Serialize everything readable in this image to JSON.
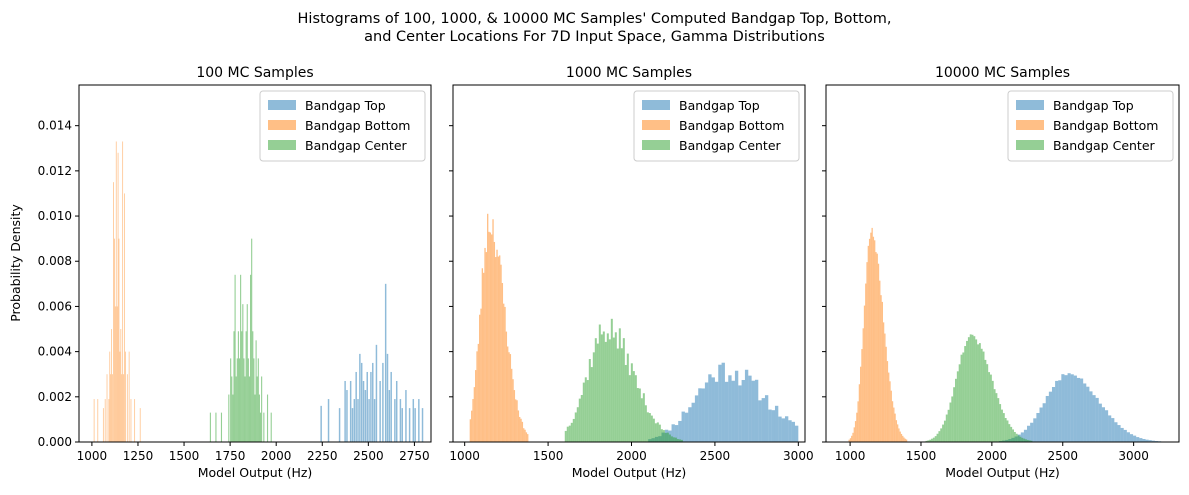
{
  "figure": {
    "title_line1": "Histograms of 100, 1000, & 10000 MC Samples' Computed Bandgap Top, Bottom,",
    "title_line2": "and Center Locations For 7D Input Space, Gamma Distributions",
    "ylabel": "Probability Density"
  },
  "colors": {
    "top": "#1f77b4",
    "bottom": "#ff7f0e",
    "center": "#2ca02c",
    "opacity": 0.5
  },
  "chart_data": [
    {
      "type": "bar",
      "title": "100 MC Samples",
      "xlabel": "Model Output (Hz)",
      "ylabel": "Probability Density",
      "xlim": [
        930,
        2840
      ],
      "ylim": [
        0,
        0.0158
      ],
      "xticks": [
        1000,
        1250,
        1500,
        1750,
        2000,
        2250,
        2500,
        2750
      ],
      "yticks": [
        0.0,
        0.002,
        0.004,
        0.006,
        0.008,
        0.01,
        0.012,
        0.014
      ],
      "ytick_labels": [
        "0.000",
        "0.002",
        "0.004",
        "0.006",
        "0.008",
        "0.010",
        "0.012",
        "0.014"
      ],
      "legend": {
        "position": "top-right",
        "entries": [
          "Bandgap Top",
          "Bandgap Bottom",
          "Bandgap Center"
        ]
      },
      "series": [
        {
          "name": "Bandgap Top",
          "key": "top",
          "bins": [
            [
              2240,
              2248,
              0.0016
            ],
            [
              2280,
              2288,
              0.0019
            ],
            [
              2340,
              2348,
              0.0015
            ],
            [
              2370,
              2378,
              0.0027
            ],
            [
              2380,
              2388,
              0.0023
            ],
            [
              2400,
              2408,
              0.0027
            ],
            [
              2410,
              2418,
              0.0015
            ],
            [
              2420,
              2428,
              0.0019
            ],
            [
              2430,
              2438,
              0.0031
            ],
            [
              2440,
              2448,
              0.0019
            ],
            [
              2450,
              2458,
              0.0039
            ],
            [
              2460,
              2468,
              0.0035
            ],
            [
              2470,
              2478,
              0.0027
            ],
            [
              2480,
              2488,
              0.0023
            ],
            [
              2490,
              2498,
              0.0031
            ],
            [
              2500,
              2508,
              0.0019
            ],
            [
              2510,
              2518,
              0.0031
            ],
            [
              2520,
              2528,
              0.0035
            ],
            [
              2530,
              2538,
              0.0019
            ],
            [
              2540,
              2548,
              0.0043
            ],
            [
              2560,
              2568,
              0.0027
            ],
            [
              2575,
              2583,
              0.0035
            ],
            [
              2590,
              2598,
              0.007
            ],
            [
              2600,
              2608,
              0.0039
            ],
            [
              2610,
              2618,
              0.0023
            ],
            [
              2620,
              2628,
              0.0031
            ],
            [
              2640,
              2648,
              0.0019
            ],
            [
              2650,
              2658,
              0.0027
            ],
            [
              2670,
              2678,
              0.0019
            ],
            [
              2680,
              2688,
              0.0015
            ],
            [
              2700,
              2708,
              0.0023
            ],
            [
              2720,
              2728,
              0.0015
            ],
            [
              2740,
              2748,
              0.0019
            ],
            [
              2750,
              2758,
              0.0015
            ],
            [
              2770,
              2778,
              0.0019
            ],
            [
              2790,
              2798,
              0.0015
            ]
          ]
        },
        {
          "name": "Bandgap Bottom",
          "key": "bottom",
          "bins": [
            [
              1010,
              1014,
              0.0019
            ],
            [
              1030,
              1034,
              0.0019
            ],
            [
              1060,
              1064,
              0.0015
            ],
            [
              1070,
              1074,
              0.0019
            ],
            [
              1080,
              1084,
              0.003
            ],
            [
              1090,
              1094,
              0.0019
            ],
            [
              1095,
              1099,
              0.004
            ],
            [
              1100,
              1104,
              0.003
            ],
            [
              1105,
              1109,
              0.005
            ],
            [
              1110,
              1114,
              0.003
            ],
            [
              1115,
              1119,
              0.0115
            ],
            [
              1120,
              1124,
              0.009
            ],
            [
              1125,
              1129,
              0.006
            ],
            [
              1130,
              1134,
              0.0133
            ],
            [
              1135,
              1139,
              0.006
            ],
            [
              1140,
              1144,
              0.0128
            ],
            [
              1145,
              1149,
              0.009
            ],
            [
              1150,
              1154,
              0.004
            ],
            [
              1155,
              1159,
              0.005
            ],
            [
              1160,
              1164,
              0.003
            ],
            [
              1165,
              1169,
              0.0133
            ],
            [
              1170,
              1174,
              0.003
            ],
            [
              1175,
              1179,
              0.011
            ],
            [
              1180,
              1184,
              0.004
            ],
            [
              1190,
              1194,
              0.003
            ],
            [
              1200,
              1204,
              0.004
            ],
            [
              1210,
              1214,
              0.0019
            ],
            [
              1230,
              1234,
              0.0019
            ],
            [
              1260,
              1264,
              0.0015
            ]
          ]
        },
        {
          "name": "Bandgap Center",
          "key": "center",
          "bins": [
            [
              1640,
              1646,
              0.0013
            ],
            [
              1670,
              1676,
              0.0013
            ],
            [
              1700,
              1706,
              0.0013
            ],
            [
              1740,
              1746,
              0.0021
            ],
            [
              1750,
              1756,
              0.0037
            ],
            [
              1756,
              1762,
              0.0029
            ],
            [
              1762,
              1768,
              0.0021
            ],
            [
              1768,
              1774,
              0.0049
            ],
            [
              1774,
              1780,
              0.0074
            ],
            [
              1780,
              1786,
              0.0029
            ],
            [
              1786,
              1792,
              0.0037
            ],
            [
              1792,
              1798,
              0.0049
            ],
            [
              1798,
              1804,
              0.0037
            ],
            [
              1804,
              1810,
              0.0074
            ],
            [
              1810,
              1816,
              0.0049
            ],
            [
              1816,
              1822,
              0.0061
            ],
            [
              1822,
              1828,
              0.0037
            ],
            [
              1828,
              1834,
              0.0029
            ],
            [
              1834,
              1840,
              0.0049
            ],
            [
              1840,
              1846,
              0.0061
            ],
            [
              1846,
              1852,
              0.0037
            ],
            [
              1852,
              1858,
              0.0029
            ],
            [
              1858,
              1864,
              0.0074
            ],
            [
              1864,
              1870,
              0.009
            ],
            [
              1870,
              1876,
              0.0049
            ],
            [
              1876,
              1882,
              0.0037
            ],
            [
              1882,
              1888,
              0.0021
            ],
            [
              1888,
              1894,
              0.0045
            ],
            [
              1894,
              1900,
              0.0029
            ],
            [
              1900,
              1906,
              0.0037
            ],
            [
              1906,
              1912,
              0.0021
            ],
            [
              1912,
              1918,
              0.0013
            ],
            [
              1918,
              1924,
              0.0029
            ],
            [
              1930,
              1936,
              0.0013
            ],
            [
              1950,
              1956,
              0.0021
            ],
            [
              1970,
              1976,
              0.0013
            ]
          ]
        }
      ]
    },
    {
      "type": "bar",
      "title": "1000 MC Samples",
      "xlabel": "Model Output (Hz)",
      "ylabel": "",
      "xlim": [
        930,
        3040
      ],
      "ylim": [
        0,
        0.0158
      ],
      "xticks": [
        1000,
        1500,
        2000,
        2500,
        3000
      ],
      "yticks": [
        0.0,
        0.002,
        0.004,
        0.006,
        0.008,
        0.01,
        0.012,
        0.014
      ],
      "legend": {
        "position": "top-right",
        "entries": [
          "Bandgap Top",
          "Bandgap Bottom",
          "Bandgap Center"
        ]
      },
      "series": [
        {
          "name": "Bandgap Top",
          "key": "top",
          "profile": {
            "mu": 2560,
            "sigma": 180,
            "peak": 0.0032,
            "min": 2100,
            "max": 3000,
            "width": 20,
            "noise": 0.18,
            "skew": 0.35,
            "seed": 11
          }
        },
        {
          "name": "Bandgap Bottom",
          "key": "bottom",
          "profile": {
            "mu": 1150,
            "sigma": 55,
            "peak": 0.0098,
            "min": 1030,
            "max": 1380,
            "width": 8,
            "noise": 0.1,
            "skew": 0.6,
            "seed": 23
          }
        },
        {
          "name": "Bandgap Center",
          "key": "center",
          "profile": {
            "mu": 1850,
            "sigma": 115,
            "peak": 0.005,
            "min": 1600,
            "max": 2300,
            "width": 12,
            "noise": 0.14,
            "skew": 0.4,
            "seed": 37
          }
        }
      ]
    },
    {
      "type": "bar",
      "title": "10000 MC Samples",
      "xlabel": "Model Output (Hz)",
      "ylabel": "",
      "xlim": [
        830,
        3320
      ],
      "ylim": [
        0,
        0.0158
      ],
      "xticks": [
        1000,
        1500,
        2000,
        2500,
        3000
      ],
      "yticks": [
        0.0,
        0.002,
        0.004,
        0.006,
        0.008,
        0.01,
        0.012,
        0.014
      ],
      "legend": {
        "position": "top-right",
        "entries": [
          "Bandgap Top",
          "Bandgap Bottom",
          "Bandgap Center"
        ]
      },
      "series": [
        {
          "name": "Bandgap Top",
          "key": "top",
          "profile": {
            "mu": 2540,
            "sigma": 165,
            "peak": 0.003,
            "min": 2050,
            "max": 3230,
            "width": 22,
            "noise": 0.03,
            "skew": 0.3,
            "seed": 5
          }
        },
        {
          "name": "Bandgap Bottom",
          "key": "bottom",
          "profile": {
            "mu": 1150,
            "sigma": 52,
            "peak": 0.0093,
            "min": 980,
            "max": 1420,
            "width": 9,
            "noise": 0.03,
            "skew": 0.6,
            "seed": 7
          }
        },
        {
          "name": "Bandgap Center",
          "key": "center",
          "profile": {
            "mu": 1855,
            "sigma": 105,
            "peak": 0.0047,
            "min": 1480,
            "max": 2280,
            "width": 13,
            "noise": 0.03,
            "skew": 0.35,
            "seed": 9
          }
        }
      ]
    }
  ]
}
